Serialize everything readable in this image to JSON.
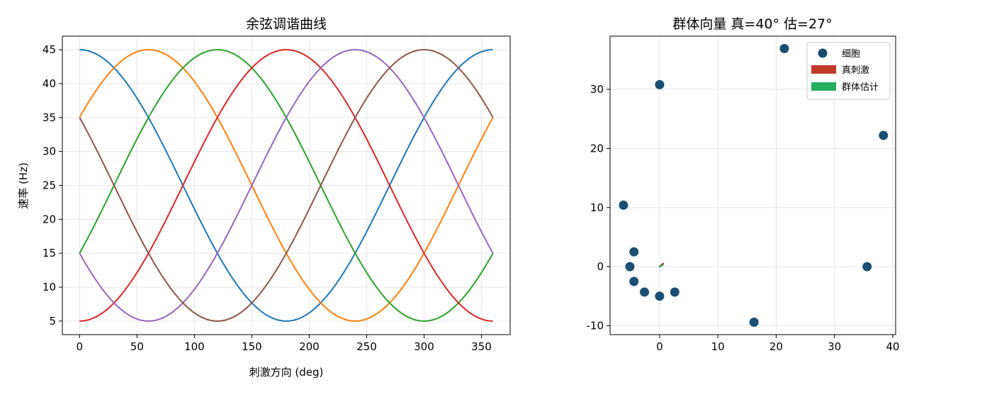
{
  "chart_data": [
    {
      "type": "line",
      "title": "余弦调谐曲线",
      "xlabel": "刺激方向 (deg)",
      "ylabel": "速率 (Hz)",
      "xlim": [
        -15,
        375
      ],
      "ylim": [
        3,
        47
      ],
      "xticks": [
        "0",
        "50",
        "100",
        "150",
        "200",
        "250",
        "300",
        "350"
      ],
      "xtick_values": [
        0,
        50,
        100,
        150,
        200,
        250,
        300,
        350
      ],
      "yticks": [
        "5",
        "10",
        "15",
        "20",
        "25",
        "30",
        "35",
        "40",
        "45"
      ],
      "ytick_values": [
        5,
        10,
        15,
        20,
        25,
        30,
        35,
        40,
        45
      ],
      "grid": true,
      "curve_model": "rate = max(5, 25 + 20·cos(θ − preferred)); baseline 5 Hz, peak 45 Hz",
      "series": [
        {
          "preferred": 0,
          "color": "#1f77b4"
        },
        {
          "preferred": 60,
          "color": "#ff7f0e"
        },
        {
          "preferred": 120,
          "color": "#2ca02c"
        },
        {
          "preferred": 180,
          "color": "#d62728"
        },
        {
          "preferred": 240,
          "color": "#9467bd"
        },
        {
          "preferred": 300,
          "color": "#8c564b"
        }
      ]
    },
    {
      "type": "scatter",
      "title": "群体向量  真=40°  估=27°",
      "xlim": [
        -8.5,
        40.5
      ],
      "ylim": [
        -11.5,
        39
      ],
      "xticks": [
        "0",
        "10",
        "20",
        "30",
        "40"
      ],
      "xtick_values": [
        0,
        10,
        20,
        30,
        40
      ],
      "yticks": [
        "-10",
        "0",
        "10",
        "20",
        "30"
      ],
      "ytick_values": [
        -10,
        0,
        10,
        20,
        30
      ],
      "grid": true,
      "legend": {
        "position": "top-right",
        "entries": [
          {
            "label": "细胞",
            "kind": "marker",
            "color": "#1a4e72"
          },
          {
            "label": "真刺激",
            "kind": "patch",
            "color": "#c0392b"
          },
          {
            "label": "群体估计",
            "kind": "patch",
            "color": "#27ae60"
          }
        ]
      },
      "points": [
        {
          "x": 21.4,
          "y": 36.9
        },
        {
          "x": 0.0,
          "y": 30.8
        },
        {
          "x": 38.4,
          "y": 22.2
        },
        {
          "x": -6.2,
          "y": 10.4
        },
        {
          "x": -4.4,
          "y": 2.5
        },
        {
          "x": -5.1,
          "y": 0.0
        },
        {
          "x": 35.6,
          "y": 0.0
        },
        {
          "x": -4.4,
          "y": -2.5
        },
        {
          "x": -2.6,
          "y": -4.3
        },
        {
          "x": 2.6,
          "y": -4.3
        },
        {
          "x": 0.0,
          "y": -5.0
        },
        {
          "x": 16.2,
          "y": -9.4
        }
      ],
      "marker_color": "#1a4e72",
      "true_vector": {
        "dx": 0.6,
        "dy": 0.5,
        "color": "#c0392b"
      },
      "estimate_vector": {
        "dx": 0.6,
        "dy": 0.3,
        "color": "#27ae60"
      }
    }
  ]
}
